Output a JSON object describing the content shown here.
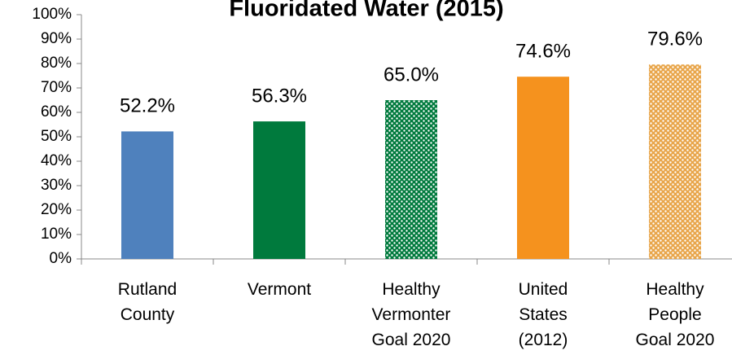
{
  "chart_data": {
    "type": "bar",
    "title": "Fluoridated Water (2015)",
    "categories": [
      "Rutland County",
      "Vermont",
      "Healthy Vermonter Goal 2020",
      "United States (2012)",
      "Healthy People Goal 2020"
    ],
    "values": [
      52.2,
      56.3,
      65.0,
      74.6,
      79.6
    ],
    "value_labels": [
      "52.2%",
      "56.3%",
      "65.0%",
      "74.6%",
      "79.6%"
    ],
    "colors": [
      "#4f81bd",
      "#007a3d",
      "#007a3d",
      "#f5921e",
      "#e8a54a"
    ],
    "patterned": [
      false,
      false,
      true,
      false,
      true
    ],
    "ylim": [
      0,
      100
    ],
    "yticks": [
      {
        "value": 0,
        "label": "0%"
      },
      {
        "value": 10,
        "label": "10%"
      },
      {
        "value": 20,
        "label": "20%"
      },
      {
        "value": 30,
        "label": "30%"
      },
      {
        "value": 40,
        "label": "40%"
      },
      {
        "value": 50,
        "label": "50%"
      },
      {
        "value": 60,
        "label": "60%"
      },
      {
        "value": 70,
        "label": "70%"
      },
      {
        "value": 80,
        "label": "80%"
      },
      {
        "value": 90,
        "label": "90%"
      },
      {
        "value": 100,
        "label": "100%"
      }
    ],
    "grid": false
  }
}
